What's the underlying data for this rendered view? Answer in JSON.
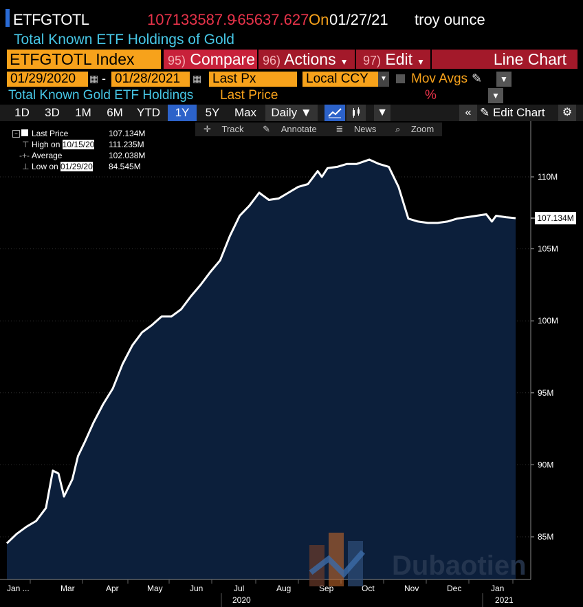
{
  "header": {
    "ticker": "ETFGTOTL",
    "last_value": "107133587.9",
    "change": "-65637.627",
    "on_label": "On",
    "date": "01/27/21",
    "unit": "troy ounce",
    "description": "Total Known ETF Holdings of Gold"
  },
  "function_bar": {
    "security": "ETFGTOTL Index",
    "compare_num": "95)",
    "compare": "Compare",
    "actions_num": "96)",
    "actions": "Actions",
    "edit_num": "97)",
    "edit": "Edit",
    "chart_type": "Line Chart"
  },
  "range": {
    "start": "01/29/2020",
    "dash": "-",
    "end": "01/28/2021",
    "field": "Last Px",
    "currency": "Local CCY",
    "mov_avgs": "Mov Avgs"
  },
  "series_row": {
    "name": "Total Known Gold ETF Holdings",
    "field": "Last Price",
    "percent": "%"
  },
  "toolbar": {
    "ranges": [
      "1D",
      "3D",
      "1M",
      "6M",
      "YTD",
      "1Y",
      "5Y",
      "Max"
    ],
    "selected": "1Y",
    "frequency": "Daily ▼",
    "edit_chart": "Edit Chart"
  },
  "chart_tools": {
    "track": "Track",
    "annotate": "Annotate",
    "news": "News",
    "zoom": "Zoom"
  },
  "legend": [
    {
      "label": "Last Price",
      "value": "107.134M"
    },
    {
      "label": "High on",
      "date": "10/15/20",
      "value": "111.235M"
    },
    {
      "label": "Average",
      "value": "102.038M"
    },
    {
      "label": "Low on",
      "date": "01/29/20",
      "value": "84.545M"
    }
  ],
  "last_badge": "107.134M",
  "watermark": "Dubaotien",
  "colors": {
    "amber": "#f7a21b",
    "red": "#e8334a",
    "cyan": "#47c7e6",
    "area": "#0c1f3b",
    "select_blue": "#2c62c9"
  },
  "chart_data": {
    "type": "area",
    "y_axis": {
      "min": 82,
      "max": 114,
      "ticks": [
        85,
        90,
        95,
        100,
        105,
        110
      ],
      "tick_labels": [
        "85M",
        "90M",
        "95M",
        "100M",
        "105M",
        "110M"
      ],
      "side": "right"
    },
    "x_axis": {
      "months": [
        "Jan ...",
        "Mar",
        "Apr",
        "May",
        "Jun",
        "Jul",
        "Aug",
        "Sep",
        "Oct",
        "Nov",
        "Dec",
        "Jan"
      ],
      "years": [
        "2020",
        "2021"
      ]
    },
    "x": [
      "2020-01-29",
      "2020-02-05",
      "2020-02-12",
      "2020-02-19",
      "2020-02-26",
      "2020-03-02",
      "2020-03-06",
      "2020-03-10",
      "2020-03-16",
      "2020-03-20",
      "2020-03-25",
      "2020-03-31",
      "2020-04-07",
      "2020-04-14",
      "2020-04-21",
      "2020-04-28",
      "2020-05-05",
      "2020-05-12",
      "2020-05-19",
      "2020-05-26",
      "2020-06-02",
      "2020-06-09",
      "2020-06-16",
      "2020-06-23",
      "2020-06-30",
      "2020-07-07",
      "2020-07-14",
      "2020-07-21",
      "2020-07-28",
      "2020-08-04",
      "2020-08-11",
      "2020-08-18",
      "2020-08-25",
      "2020-09-01",
      "2020-09-08",
      "2020-09-11",
      "2020-09-15",
      "2020-09-22",
      "2020-09-29",
      "2020-10-06",
      "2020-10-15",
      "2020-10-22",
      "2020-10-29",
      "2020-11-05",
      "2020-11-12",
      "2020-11-19",
      "2020-11-26",
      "2020-12-03",
      "2020-12-10",
      "2020-12-17",
      "2020-12-24",
      "2020-12-31",
      "2021-01-07",
      "2021-01-11",
      "2021-01-14",
      "2021-01-21",
      "2021-01-28"
    ],
    "values": [
      84.55,
      85.2,
      85.7,
      86.1,
      87.0,
      89.6,
      89.4,
      87.8,
      89.0,
      90.6,
      91.6,
      92.9,
      94.2,
      95.3,
      97.0,
      98.3,
      99.2,
      99.7,
      100.3,
      100.3,
      100.8,
      101.7,
      102.5,
      103.4,
      104.2,
      105.9,
      107.3,
      108.0,
      108.9,
      108.4,
      108.5,
      108.9,
      109.3,
      109.5,
      110.4,
      110.0,
      110.6,
      110.7,
      110.9,
      110.9,
      111.2,
      110.9,
      110.7,
      109.3,
      107.1,
      106.9,
      106.8,
      106.8,
      106.9,
      107.1,
      107.2,
      107.3,
      107.4,
      106.9,
      107.3,
      107.2,
      107.13
    ],
    "last": 107.134
  }
}
